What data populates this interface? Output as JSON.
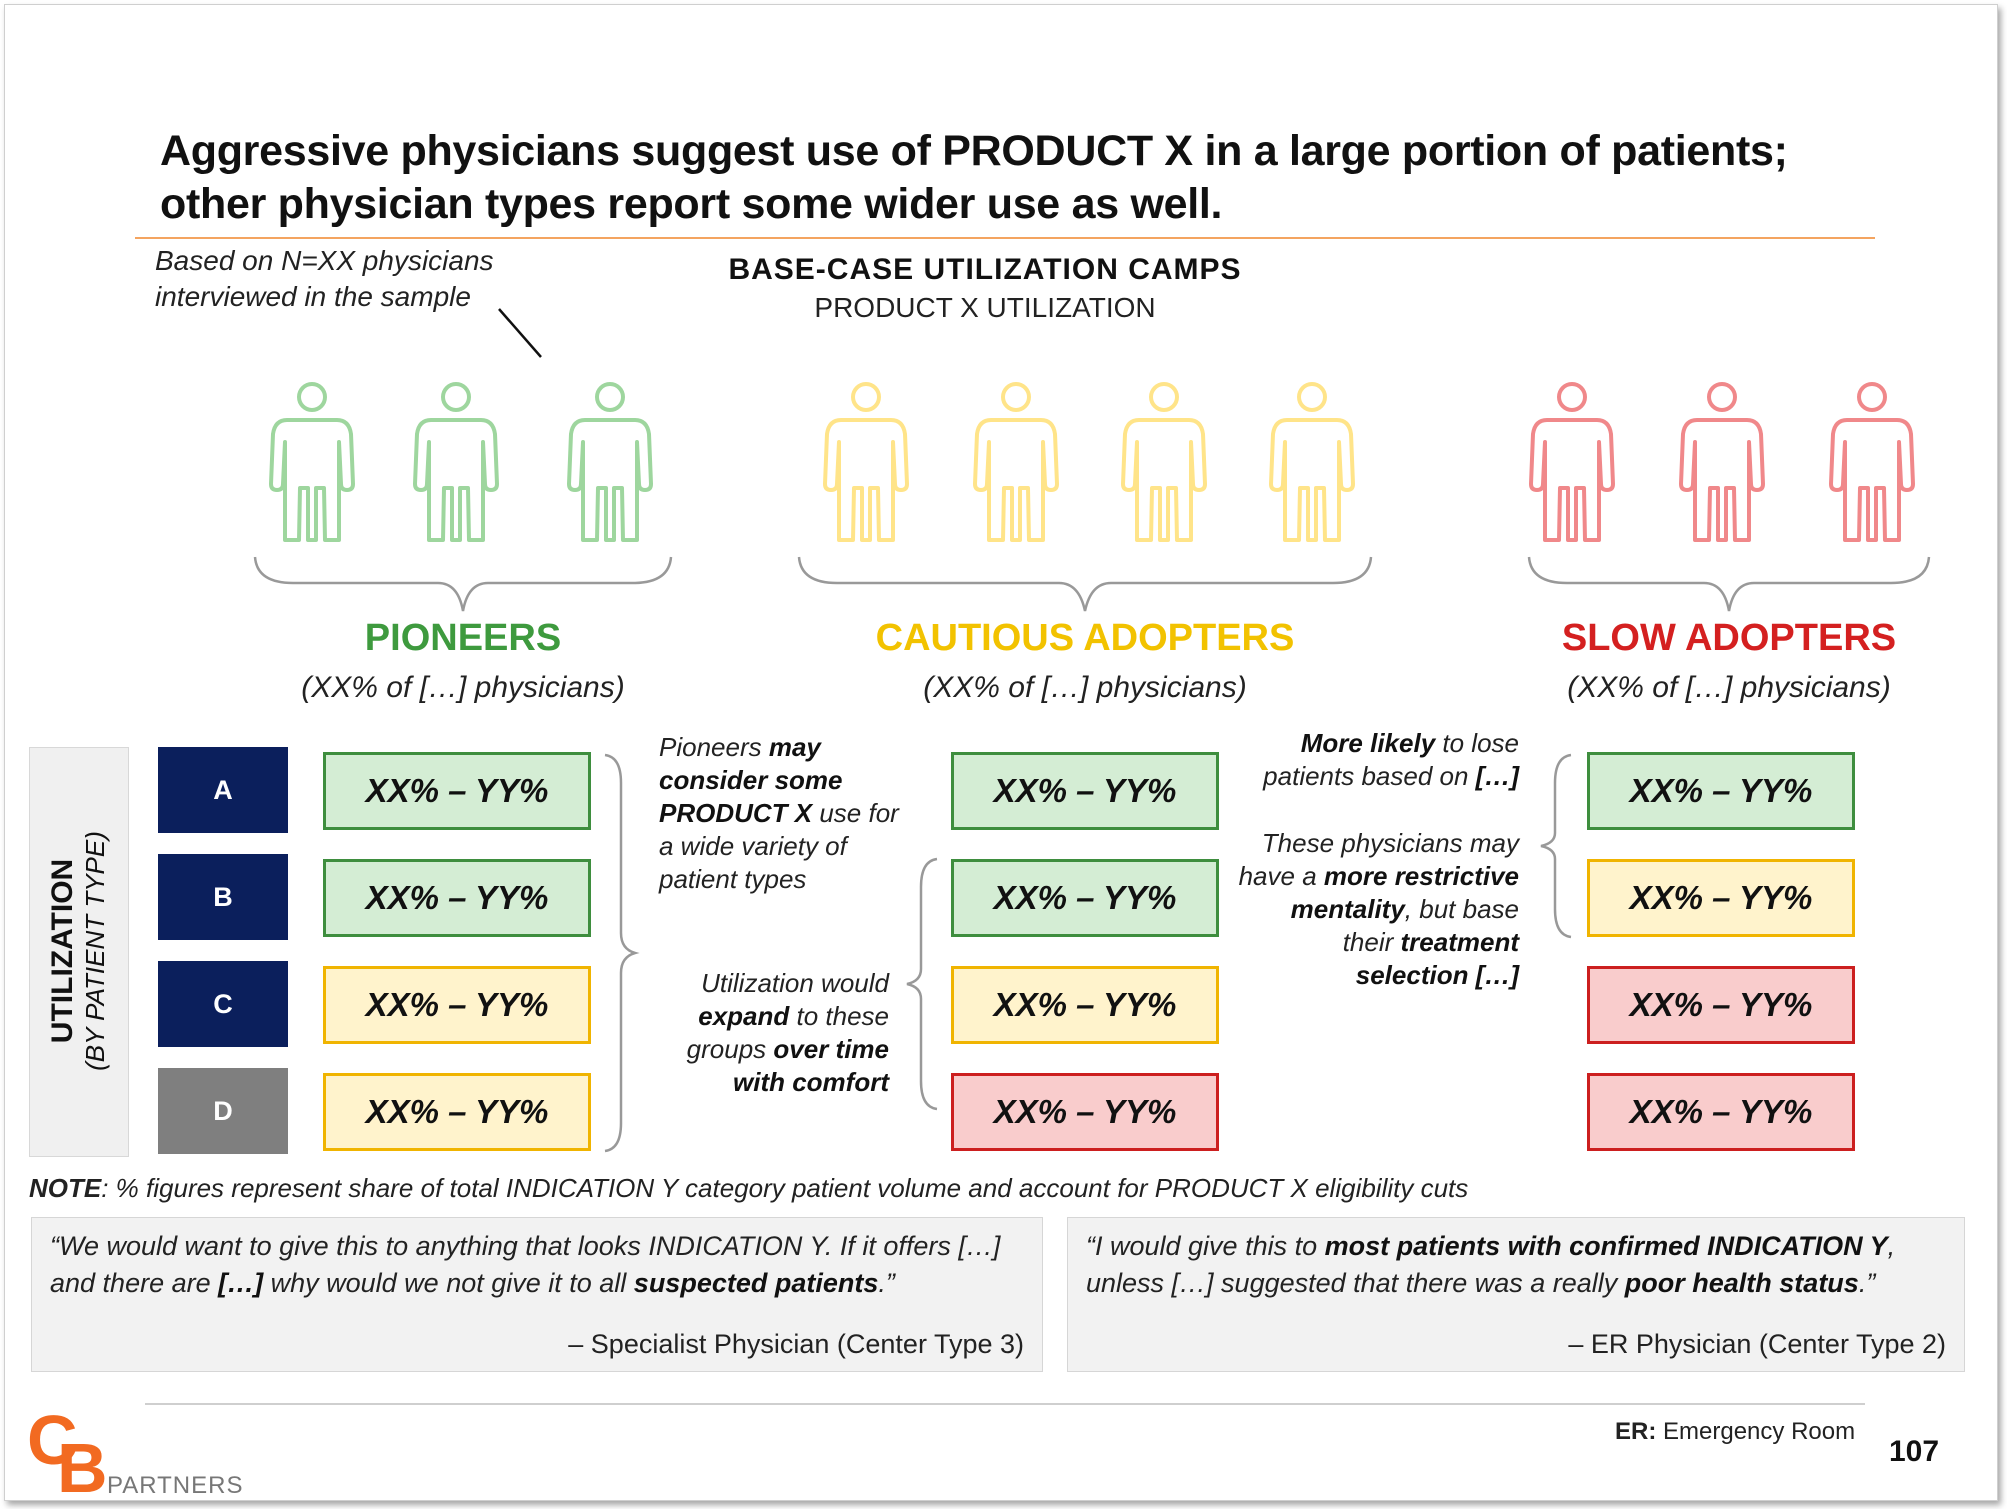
{
  "title_line1": "Aggressive physicians suggest use of PRODUCT X in a large portion of patients;",
  "title_line2": "other physician types report some wider use as well.",
  "sample_note_line1": "Based on N=XX physicians",
  "sample_note_line2": "interviewed in the sample",
  "camps_title": "BASE-CASE  UTILIZATION  CAMPS",
  "camps_subtitle": "PRODUCT X UTILIZATION",
  "groups": [
    {
      "label": "PIONEERS",
      "sub": "(XX% of […] physicians)",
      "color": "#3e9a3e",
      "figure_color": "#9ed69e"
    },
    {
      "label": "CAUTIOUS ADOPTERS",
      "sub": "(XX% of […] physicians)",
      "color": "#f2c200",
      "figure_color": "#ffe489"
    },
    {
      "label": "SLOW ADOPTERS",
      "sub": "(XX% of […] physicians)",
      "color": "#d42020",
      "figure_color": "#f0888a"
    }
  ],
  "utilization_label": "UTILIZATION",
  "utilization_sublabel": "(BY PATIENT TYPE)",
  "patient_types": [
    "A",
    "B",
    "C",
    "D"
  ],
  "patient_type_colors": [
    "#0b1f5c",
    "#0b1f5c",
    "#0b1f5c",
    "#7f7f7f"
  ],
  "cell_text": "XX% – YY%",
  "cells": {
    "pioneers": [
      "green",
      "green",
      "yellow",
      "yellow"
    ],
    "cautious": [
      "green",
      "green",
      "yellow",
      "red"
    ],
    "slow": [
      "green",
      "yellow",
      "red",
      "red"
    ]
  },
  "annotations": {
    "pioneers": {
      "t1": "Pioneers ",
      "b1": "may consider some PRODUCT X",
      "t2": " use for a wide variety of patient types"
    },
    "cautious": {
      "t1": "Utilization would ",
      "b1": "expand",
      "t2": " to these groups ",
      "b2": "over time with comfort"
    },
    "slow_top": {
      "b1": "More likely",
      "t1": " to lose patients based on ",
      "b2": "[…]"
    },
    "slow_bottom": {
      "t1": "These physicians may have a ",
      "b1": "more restrictive mentality",
      "t2": ", but base their ",
      "b2": "treatment selection […]"
    }
  },
  "footnote_label": "NOTE",
  "footnote_text": ": % figures represent share of total INDICATION Y category patient volume and account for PRODUCT X eligibility cuts",
  "quote1": {
    "p1": "“We would want to give this to anything that looks INDICATION Y. If it offers […] and there are ",
    "b1": "[…]",
    "p2": " why would we not give it to all ",
    "b2": "suspected patients",
    "p3": ".”",
    "attribution": "– Specialist Physician (Center Type 3)"
  },
  "quote2": {
    "p1": "“I would give this to ",
    "b1": "most patients with confirmed INDICATION Y",
    "p2": ", unless […] suggested that there was a really ",
    "b2": "poor health status",
    "p3": ".”",
    "attribution": "– ER Physician (Center Type 2)"
  },
  "abbr_label": "ER:",
  "abbr_text": " Emergency Room",
  "page_number": "107",
  "logo_c": "C",
  "logo_b": "B",
  "logo_partners": "PARTNERS"
}
